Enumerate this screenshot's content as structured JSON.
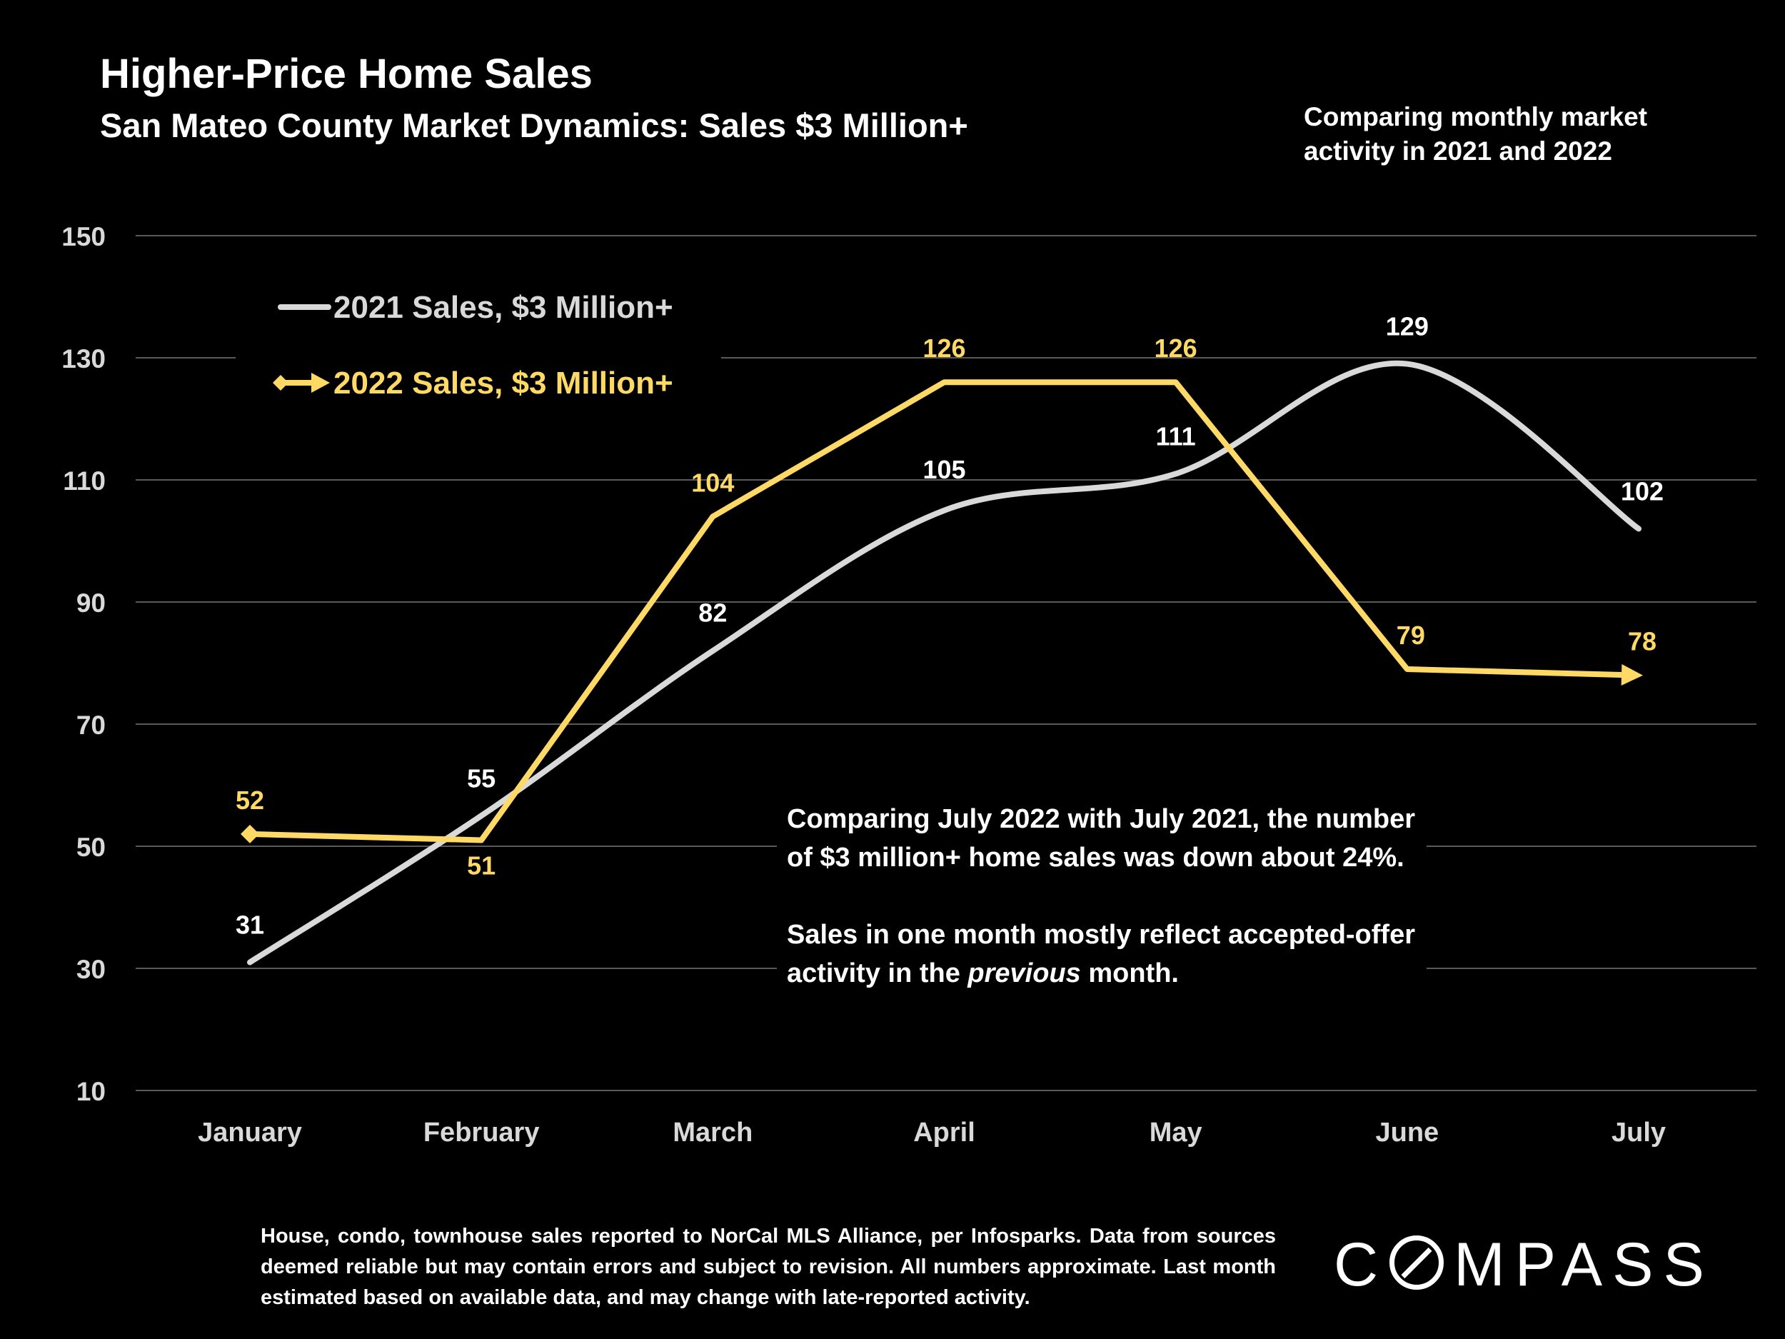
{
  "title": "Higher-Price Home Sales",
  "subtitle": "San Mateo County Market Dynamics: Sales $3 Million+",
  "corner_note": "Comparing monthly market activity in 2021 and 2022",
  "annotation": {
    "paragraph1": "Comparing July 2022 with July 2021, the number of $3 million+ home sales was down about 24%.",
    "paragraph2_before": "Sales in one month mostly reflect accepted-offer activity in the ",
    "paragraph2_emphasis": "previous",
    "paragraph2_after": " month."
  },
  "footnote": "House, condo, townhouse sales reported to NorCal MLS Alliance, per Infosparks. Data from sources deemed reliable but may contain errors and subject to revision. All numbers approximate. Last month estimated based on available data, and may change with late-reported activity.",
  "logo": {
    "before": "C",
    "after": "MPASS"
  },
  "colors": {
    "background": "#000000",
    "series_2021": "#D9D9D9",
    "series_2022": "#FFD966",
    "text": "#FFFFFF",
    "grid": "#595959"
  },
  "chart_data": {
    "type": "line",
    "categories": [
      "January",
      "February",
      "March",
      "April",
      "May",
      "June",
      "July"
    ],
    "ylim": [
      10,
      150
    ],
    "yticks": [
      10,
      30,
      50,
      70,
      90,
      110,
      130,
      150
    ],
    "grid": true,
    "legend_position": "top-left",
    "series": [
      {
        "name": "2021 Sales, $3 Million+",
        "values": [
          31,
          55,
          82,
          105,
          111,
          129,
          102
        ],
        "smooth": true,
        "color": "#D9D9D9",
        "marker": "none"
      },
      {
        "name": "2022 Sales, $3 Million+",
        "values": [
          52,
          51,
          104,
          126,
          126,
          79,
          78
        ],
        "smooth": false,
        "color": "#FFD966",
        "marker": "diamond-start-arrow-end"
      }
    ]
  }
}
